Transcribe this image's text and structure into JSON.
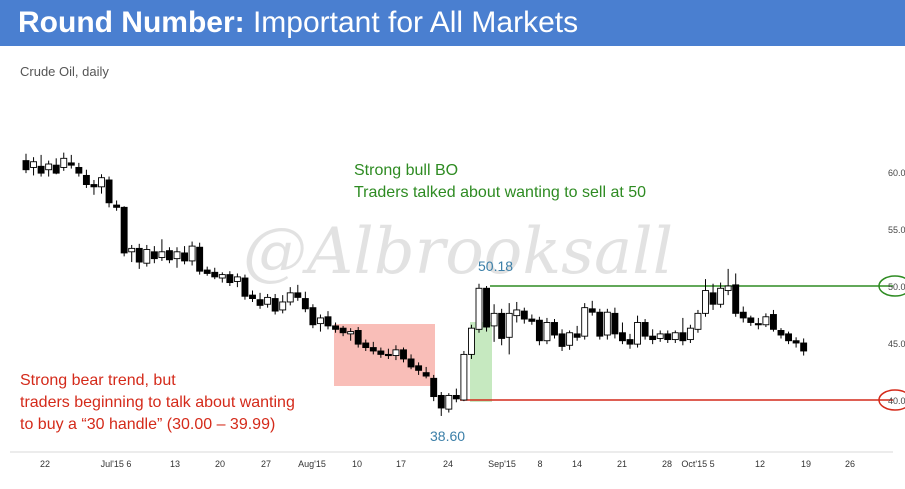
{
  "header": {
    "title_bold": "Round Number:",
    "title_rest": " Important for All Markets"
  },
  "subtitle": "Crude Oil, daily",
  "watermark": "@Albrooksall",
  "annotations": {
    "bull_line1": "Strong bull BO",
    "bull_line2": "Traders talked about wanting to sell at 50",
    "bear_line1": "Strong bear trend, but",
    "bear_line2": "traders beginning to talk about wanting",
    "bear_line3": "to buy a “30 handle” (30.00 – 39.99)",
    "high_label": "50.18",
    "low_label": "38.60"
  },
  "colors": {
    "header": "#4a7fd0",
    "bull": "#2e8b22",
    "bear": "#d42a1a",
    "label": "#3b7fa8",
    "red_box": "#f7a8a0",
    "green_box": "#b8e4b0"
  },
  "chart_data": {
    "type": "candlestick",
    "title": "Crude Oil, daily",
    "y_ticks": [
      "60.0",
      "55.0",
      "50.0",
      "45.0",
      "40.0"
    ],
    "x_ticks": [
      "22",
      "Jul'15 6",
      "13",
      "20",
      "27",
      "Aug'15",
      "10",
      "17",
      "24",
      "Sep'15",
      "8",
      "14",
      "21",
      "28",
      "Oct'15 5",
      "12",
      "19",
      "26"
    ],
    "levels": [
      {
        "name": "50.0",
        "value": 50.0
      },
      {
        "name": "40.0",
        "value": 40.0
      }
    ],
    "candles": [
      {
        "o": 61.0,
        "h": 61.6,
        "l": 59.9,
        "c": 60.2
      },
      {
        "o": 60.4,
        "h": 61.3,
        "l": 59.7,
        "c": 60.9
      },
      {
        "o": 60.5,
        "h": 61.5,
        "l": 59.6,
        "c": 59.9
      },
      {
        "o": 60.2,
        "h": 61.0,
        "l": 59.6,
        "c": 60.7
      },
      {
        "o": 60.6,
        "h": 61.2,
        "l": 59.8,
        "c": 59.9
      },
      {
        "o": 60.4,
        "h": 61.7,
        "l": 60.1,
        "c": 61.2
      },
      {
        "o": 60.8,
        "h": 61.5,
        "l": 60.3,
        "c": 60.6
      },
      {
        "o": 60.4,
        "h": 60.8,
        "l": 59.6,
        "c": 59.9
      },
      {
        "o": 59.7,
        "h": 60.2,
        "l": 58.6,
        "c": 58.9
      },
      {
        "o": 58.9,
        "h": 59.3,
        "l": 58.0,
        "c": 58.7
      },
      {
        "o": 58.7,
        "h": 59.8,
        "l": 58.1,
        "c": 59.5
      },
      {
        "o": 59.3,
        "h": 59.6,
        "l": 56.9,
        "c": 57.3
      },
      {
        "o": 57.1,
        "h": 57.5,
        "l": 56.6,
        "c": 56.9
      },
      {
        "o": 56.9,
        "h": 57.0,
        "l": 52.6,
        "c": 52.9
      },
      {
        "o": 53.0,
        "h": 53.6,
        "l": 52.1,
        "c": 53.3
      },
      {
        "o": 53.3,
        "h": 53.7,
        "l": 51.5,
        "c": 52.1
      },
      {
        "o": 52.0,
        "h": 53.6,
        "l": 51.7,
        "c": 53.2
      },
      {
        "o": 53.0,
        "h": 53.5,
        "l": 52.0,
        "c": 52.4
      },
      {
        "o": 52.5,
        "h": 54.1,
        "l": 52.2,
        "c": 53.0
      },
      {
        "o": 53.1,
        "h": 53.4,
        "l": 52.0,
        "c": 52.3
      },
      {
        "o": 52.4,
        "h": 53.4,
        "l": 51.6,
        "c": 53.0
      },
      {
        "o": 52.9,
        "h": 53.5,
        "l": 51.9,
        "c": 52.2
      },
      {
        "o": 52.2,
        "h": 53.9,
        "l": 51.8,
        "c": 53.5
      },
      {
        "o": 53.4,
        "h": 53.8,
        "l": 51.0,
        "c": 51.3
      },
      {
        "o": 51.4,
        "h": 51.7,
        "l": 50.9,
        "c": 51.1
      },
      {
        "o": 51.2,
        "h": 51.6,
        "l": 50.6,
        "c": 50.8
      },
      {
        "o": 50.7,
        "h": 51.2,
        "l": 50.3,
        "c": 51.0
      },
      {
        "o": 51.0,
        "h": 51.3,
        "l": 50.0,
        "c": 50.3
      },
      {
        "o": 50.4,
        "h": 51.1,
        "l": 49.9,
        "c": 50.8
      },
      {
        "o": 50.7,
        "h": 51.0,
        "l": 48.8,
        "c": 49.1
      },
      {
        "o": 49.2,
        "h": 49.6,
        "l": 48.6,
        "c": 48.9
      },
      {
        "o": 48.8,
        "h": 49.4,
        "l": 48.0,
        "c": 48.3
      },
      {
        "o": 48.4,
        "h": 49.3,
        "l": 48.1,
        "c": 49.0
      },
      {
        "o": 48.9,
        "h": 49.3,
        "l": 47.5,
        "c": 47.8
      },
      {
        "o": 47.9,
        "h": 49.2,
        "l": 47.6,
        "c": 48.6
      },
      {
        "o": 48.6,
        "h": 49.9,
        "l": 48.3,
        "c": 49.4
      },
      {
        "o": 49.4,
        "h": 50.1,
        "l": 48.7,
        "c": 49.0
      },
      {
        "o": 48.9,
        "h": 49.5,
        "l": 47.7,
        "c": 48.0
      },
      {
        "o": 48.1,
        "h": 48.4,
        "l": 46.3,
        "c": 46.6
      },
      {
        "o": 46.7,
        "h": 47.5,
        "l": 46.0,
        "c": 47.2
      },
      {
        "o": 47.3,
        "h": 47.8,
        "l": 46.2,
        "c": 46.5
      },
      {
        "o": 46.5,
        "h": 46.8,
        "l": 45.9,
        "c": 46.2
      },
      {
        "o": 46.3,
        "h": 46.5,
        "l": 45.6,
        "c": 45.9
      },
      {
        "o": 45.8,
        "h": 46.3,
        "l": 45.2,
        "c": 46.0
      },
      {
        "o": 46.1,
        "h": 46.4,
        "l": 44.6,
        "c": 44.9
      },
      {
        "o": 45.0,
        "h": 45.3,
        "l": 44.3,
        "c": 44.6
      },
      {
        "o": 44.6,
        "h": 45.1,
        "l": 44.0,
        "c": 44.3
      },
      {
        "o": 44.3,
        "h": 44.6,
        "l": 43.7,
        "c": 44.0
      },
      {
        "o": 44.0,
        "h": 44.5,
        "l": 43.6,
        "c": 43.9
      },
      {
        "o": 43.9,
        "h": 44.8,
        "l": 43.5,
        "c": 44.4
      },
      {
        "o": 44.4,
        "h": 44.6,
        "l": 43.3,
        "c": 43.6
      },
      {
        "o": 43.6,
        "h": 44.0,
        "l": 42.7,
        "c": 42.9
      },
      {
        "o": 43.0,
        "h": 43.3,
        "l": 42.2,
        "c": 42.6
      },
      {
        "o": 42.4,
        "h": 42.9,
        "l": 41.9,
        "c": 42.1
      },
      {
        "o": 41.9,
        "h": 42.2,
        "l": 39.9,
        "c": 40.3
      },
      {
        "o": 40.4,
        "h": 40.7,
        "l": 38.6,
        "c": 39.3
      },
      {
        "o": 39.2,
        "h": 40.6,
        "l": 38.9,
        "c": 40.4
      },
      {
        "o": 40.4,
        "h": 41.0,
        "l": 39.8,
        "c": 40.1
      },
      {
        "o": 40.0,
        "h": 44.3,
        "l": 39.9,
        "c": 44.0
      },
      {
        "o": 44.0,
        "h": 46.6,
        "l": 43.6,
        "c": 46.3
      },
      {
        "o": 46.2,
        "h": 50.2,
        "l": 45.9,
        "c": 49.8
      },
      {
        "o": 49.8,
        "h": 50.0,
        "l": 46.0,
        "c": 46.4
      },
      {
        "o": 46.5,
        "h": 48.4,
        "l": 45.1,
        "c": 47.6
      },
      {
        "o": 47.6,
        "h": 48.0,
        "l": 44.8,
        "c": 45.4
      },
      {
        "o": 45.5,
        "h": 48.5,
        "l": 44.0,
        "c": 47.6
      },
      {
        "o": 47.4,
        "h": 48.6,
        "l": 46.8,
        "c": 47.9
      },
      {
        "o": 47.8,
        "h": 48.1,
        "l": 46.7,
        "c": 47.1
      },
      {
        "o": 47.1,
        "h": 47.5,
        "l": 46.6,
        "c": 46.9
      },
      {
        "o": 47.0,
        "h": 47.3,
        "l": 44.8,
        "c": 45.2
      },
      {
        "o": 45.2,
        "h": 47.2,
        "l": 44.9,
        "c": 46.8
      },
      {
        "o": 46.8,
        "h": 47.1,
        "l": 45.4,
        "c": 45.7
      },
      {
        "o": 45.8,
        "h": 46.2,
        "l": 44.3,
        "c": 44.7
      },
      {
        "o": 44.8,
        "h": 46.1,
        "l": 44.4,
        "c": 45.9
      },
      {
        "o": 45.8,
        "h": 46.5,
        "l": 45.2,
        "c": 45.5
      },
      {
        "o": 45.6,
        "h": 48.5,
        "l": 45.3,
        "c": 48.1
      },
      {
        "o": 48.0,
        "h": 48.7,
        "l": 47.4,
        "c": 47.7
      },
      {
        "o": 47.7,
        "h": 48.0,
        "l": 45.3,
        "c": 45.6
      },
      {
        "o": 45.7,
        "h": 48.0,
        "l": 45.3,
        "c": 47.7
      },
      {
        "o": 47.6,
        "h": 48.1,
        "l": 45.4,
        "c": 45.8
      },
      {
        "o": 45.9,
        "h": 46.8,
        "l": 44.9,
        "c": 45.2
      },
      {
        "o": 45.3,
        "h": 45.8,
        "l": 44.5,
        "c": 44.9
      },
      {
        "o": 44.9,
        "h": 47.4,
        "l": 44.6,
        "c": 46.8
      },
      {
        "o": 46.8,
        "h": 47.1,
        "l": 45.3,
        "c": 45.6
      },
      {
        "o": 45.6,
        "h": 46.2,
        "l": 44.9,
        "c": 45.3
      },
      {
        "o": 45.4,
        "h": 46.1,
        "l": 45.1,
        "c": 45.8
      },
      {
        "o": 45.8,
        "h": 46.1,
        "l": 45.0,
        "c": 45.3
      },
      {
        "o": 45.3,
        "h": 46.1,
        "l": 45.0,
        "c": 45.9
      },
      {
        "o": 45.9,
        "h": 47.2,
        "l": 44.8,
        "c": 45.2
      },
      {
        "o": 45.3,
        "h": 46.6,
        "l": 45.0,
        "c": 46.3
      },
      {
        "o": 46.2,
        "h": 47.9,
        "l": 45.9,
        "c": 47.6
      },
      {
        "o": 47.6,
        "h": 50.6,
        "l": 47.3,
        "c": 49.6
      },
      {
        "o": 49.4,
        "h": 50.2,
        "l": 47.9,
        "c": 48.4
      },
      {
        "o": 48.4,
        "h": 50.3,
        "l": 48.1,
        "c": 49.8
      },
      {
        "o": 49.6,
        "h": 51.5,
        "l": 49.2,
        "c": 50.0
      },
      {
        "o": 50.1,
        "h": 51.1,
        "l": 47.3,
        "c": 47.6
      },
      {
        "o": 47.7,
        "h": 48.2,
        "l": 46.8,
        "c": 47.2
      },
      {
        "o": 47.2,
        "h": 47.4,
        "l": 46.5,
        "c": 46.8
      },
      {
        "o": 46.7,
        "h": 47.2,
        "l": 46.2,
        "c": 46.6
      },
      {
        "o": 46.6,
        "h": 47.6,
        "l": 46.4,
        "c": 47.3
      },
      {
        "o": 47.5,
        "h": 47.9,
        "l": 46.0,
        "c": 46.2
      },
      {
        "o": 46.1,
        "h": 46.3,
        "l": 45.4,
        "c": 45.7
      },
      {
        "o": 45.8,
        "h": 46.0,
        "l": 44.9,
        "c": 45.2
      },
      {
        "o": 45.2,
        "h": 45.5,
        "l": 44.6,
        "c": 45.0
      },
      {
        "o": 45.0,
        "h": 45.4,
        "l": 43.9,
        "c": 44.3
      }
    ]
  }
}
